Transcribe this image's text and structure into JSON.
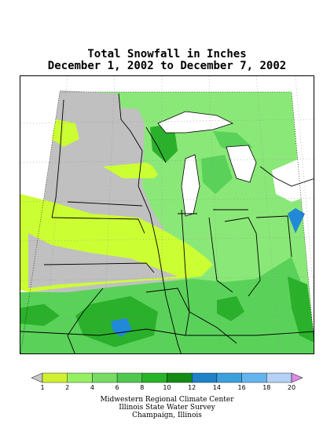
{
  "title": {
    "line1": "Total Snowfall in Inches",
    "line2": "December 1, 2002 to December 7, 2002"
  },
  "legend": {
    "labels": [
      "1",
      "2",
      "4",
      "6",
      "8",
      "10",
      "12",
      "14",
      "16",
      "18",
      "20"
    ],
    "colors": [
      "#c8c8c8",
      "#d2f032",
      "#96f064",
      "#78dc64",
      "#50c850",
      "#28b428",
      "#148c14",
      "#1e82c8",
      "#3ca0dc",
      "#64b4f0",
      "#b4d2f5",
      "#dc8ce6"
    ]
  },
  "map": {
    "colors": {
      "no_snow": "#c0c0c0",
      "light": "#ccff33",
      "green1": "#8ae878",
      "green2": "#5ad25a",
      "green3": "#2ab02a",
      "blue": "#2288d8",
      "lake": "#ffffff",
      "border": "#000000"
    }
  },
  "credits": {
    "line1": "Midwestern Regional Climate Center",
    "line2": "Illinois State Water Survey",
    "line3": "Champaign, Illinois"
  }
}
